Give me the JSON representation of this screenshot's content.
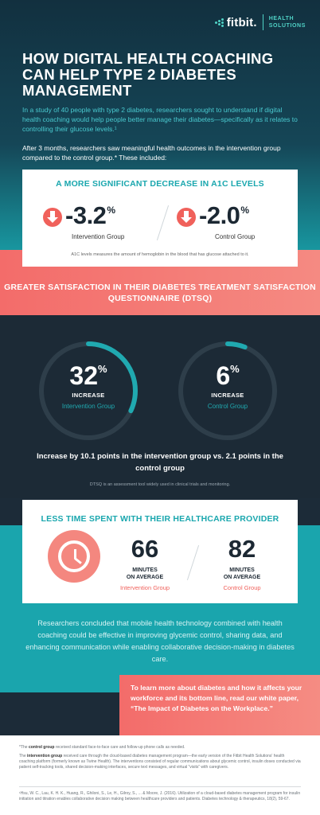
{
  "brand": {
    "name": "fitbit.",
    "sub_line1": "HEALTH",
    "sub_line2": "SOLUTIONS"
  },
  "title": "HOW DIGITAL HEALTH COACHING CAN HELP TYPE 2 DIABETES MANAGEMENT",
  "intro": "In a study of 40 people with type 2 diabetes, researchers sought to understand if digital health coaching would help people better manage their diabetes—specifically as it relates to controlling their glucose levels.¹",
  "intro2": "After 3 months, researchers saw meaningful health outcomes in the intervention group compared to the control group.* These included:",
  "a1c": {
    "heading": "A MORE SIGNIFICANT DECREASE IN A1C LEVELS",
    "intervention_value": "-3.2",
    "intervention_label": "Intervention Group",
    "control_value": "-2.0",
    "control_label": "Control Group",
    "percent": "%",
    "note": "A1C levels measures the amount of hemoglobin in the blood that has glucose attached to it."
  },
  "dtsq": {
    "heading": "GREATER SATISFACTION IN THEIR DIABETES TREATMENT SATISFACTION QUESTIONNAIRE (DTSQ)",
    "intervention_value": "32",
    "intervention_fraction": 0.32,
    "control_value": "6",
    "control_fraction": 0.06,
    "percent": "%",
    "increase_label": "INCREASE",
    "intervention_label": "Intervention Group",
    "control_label": "Control Group",
    "summary": "Increase by 10.1 points in the intervention group vs. 2.1 points in the control group",
    "note": "DTSQ is an assessment tool widely used in clinical trials and monitoring.",
    "ring_color": "#20a9b0",
    "track_color": "#2e3e4a"
  },
  "time": {
    "heading": "LESS TIME SPENT WITH THEIR HEALTHCARE PROVIDER",
    "intervention_value": "66",
    "control_value": "82",
    "unit_line1": "MINUTES",
    "unit_line2": "ON AVERAGE",
    "intervention_label": "Intervention Group",
    "control_label": "Control Group"
  },
  "conclusion": "Researchers concluded that mobile health technology combined with health coaching could be effective in improving glycemic control, sharing data, and enhancing communication while enabling collaborative decision-making in diabetes care.",
  "cta": "To learn more about diabetes and how it affects your workforce and its bottom line, read our white paper, “The Impact of Diabetes on the Workplace.”",
  "footnotes": {
    "control_prefix": "*The ",
    "control_bold": "control group",
    "control_rest": " received standard face-to-face care and follow-up phone calls as needed.",
    "intervention_prefix": "The ",
    "intervention_bold": "intervention group",
    "intervention_rest": " received care through the cloud-based diabetes management program—the early version of the Fitbit Health Solutions' health coaching platform (formerly known as Twine Health). The interventions consisted of regular communications about glycemic control, insulin doses conducted via patient self-tracking tools, shared decision-making interfaces, secure text messages, and virtual “visits” with caregivers.",
    "reference": "¹Hsu, W. C., Lau, K. H. K., Huang, R., Ghiloni, S., Le, H., Gilroy, S., ... & Moore, J. (2016). Utilization of a cloud-based diabetes management program for insulin initiation and titration enables collaborative decision making between healthcare providers and patients. Diabetes technology & therapeutics, 18(2), 59-67."
  },
  "colors": {
    "teal": "#1aa5ad",
    "coral": "#f36c6a",
    "navy": "#1c2a36"
  }
}
